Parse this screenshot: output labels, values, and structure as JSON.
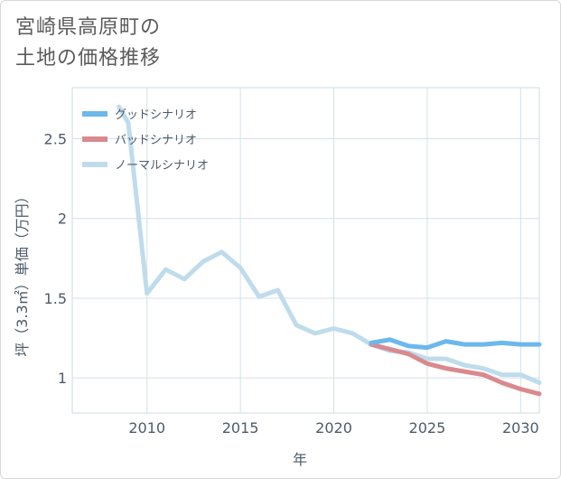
{
  "title": {
    "line1": "宮崎県高原町の",
    "line2": "土地の価格推移"
  },
  "chart_data": {
    "type": "line",
    "title": "宮崎県高原町の土地の価格推移",
    "xlabel": "年",
    "ylabel": "坪（3.3㎡）単価（万円）",
    "xlim": [
      2006,
      2031
    ],
    "ylim": [
      0.78,
      2.82
    ],
    "x_ticks": [
      2010,
      2015,
      2020,
      2025,
      2030
    ],
    "y_ticks": [
      1,
      1.5,
      2,
      2.5
    ],
    "x_tick_labels": [
      "2010",
      "2015",
      "2020",
      "2025",
      "2030"
    ],
    "y_tick_labels": [
      "1",
      "1.5",
      "2",
      "2.5"
    ],
    "grid": true,
    "legend": "top-left",
    "series": [
      {
        "name": "グッドシナリオ",
        "color": "#6cb8ec",
        "x": [
          2022,
          2023,
          2024,
          2025,
          2026,
          2027,
          2028,
          2029,
          2030,
          2031
        ],
        "values": [
          1.22,
          1.24,
          1.2,
          1.19,
          1.23,
          1.21,
          1.21,
          1.22,
          1.21,
          1.21
        ]
      },
      {
        "name": "バッドシナリオ",
        "color": "#d98a8f",
        "x": [
          2022,
          2023,
          2024,
          2025,
          2026,
          2027,
          2028,
          2029,
          2030,
          2031
        ],
        "values": [
          1.21,
          1.18,
          1.15,
          1.09,
          1.06,
          1.04,
          1.02,
          0.97,
          0.93,
          0.9
        ]
      },
      {
        "name": "ノーマルシナリオ",
        "color": "#bfdcec",
        "x": [
          2008.5,
          2009,
          2010,
          2011,
          2012,
          2013,
          2014,
          2015,
          2016,
          2017,
          2018,
          2019,
          2020,
          2021,
          2022,
          2023,
          2024,
          2025,
          2026,
          2027,
          2028,
          2029,
          2030,
          2031
        ],
        "values": [
          2.7,
          2.6,
          1.53,
          1.68,
          1.62,
          1.73,
          1.79,
          1.69,
          1.51,
          1.55,
          1.33,
          1.28,
          1.31,
          1.28,
          1.21,
          1.17,
          1.16,
          1.12,
          1.12,
          1.08,
          1.06,
          1.02,
          1.02,
          0.97
        ]
      }
    ]
  }
}
